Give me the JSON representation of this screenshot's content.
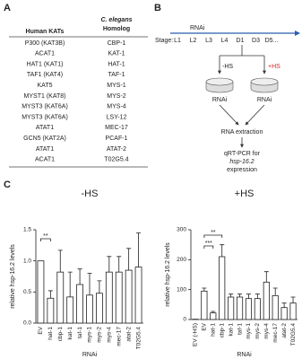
{
  "labels": {
    "a": "A",
    "b": "B",
    "c": "C"
  },
  "table": {
    "header": {
      "col1": "Human KATs",
      "col2": [
        "C. elegans",
        "Homolog"
      ]
    },
    "rows": [
      [
        "P300 (KAT3B)",
        "CBP-1"
      ],
      [
        "ACAT1",
        "KAT-1"
      ],
      [
        "HAT1 (KAT1)",
        "HAT-1"
      ],
      [
        "TAF1 (KAT4)",
        "TAF-1"
      ],
      [
        "KAT5",
        "MYS-1"
      ],
      [
        "MYST1 (KAT8)",
        "MYS-2"
      ],
      [
        "MYST3 (KAT6A)",
        "MYS-4"
      ],
      [
        "MYST3 (KAT6A)",
        "LSY-12"
      ],
      [
        "ATAT1",
        "MEC-17"
      ],
      [
        "GCN5 (KAT2A)",
        "PCAF-1"
      ],
      [
        "ATAT1",
        "ATAT-2"
      ],
      [
        "ACAT1",
        "T02G5.4"
      ]
    ]
  },
  "diagram": {
    "arrow_label": "RNAi",
    "stage_label": "Stage:",
    "stages": [
      "L1",
      "L2",
      "L3",
      "L4",
      "D1",
      "D3",
      "D5..."
    ],
    "groups": [
      {
        "label": "-HS",
        "dish": "RNAi"
      },
      {
        "label": "+HS",
        "dish": "RNAi"
      }
    ],
    "step1": "RNA extraction",
    "step2": [
      "qRT-PCR for",
      "hsp-16.2",
      "expression"
    ]
  },
  "chart_data": [
    {
      "type": "bar",
      "title": "-HS",
      "x_label": "RNAi",
      "y_label": "relative hsp-16.2 levels",
      "categories": [
        "EV",
        "hat-1",
        "cbp-1",
        "kat-1",
        "taf-1",
        "mys-1",
        "mys-2",
        "mys-4",
        "mec-17",
        "atat-2",
        "T02G5.4"
      ],
      "values": [
        1.0,
        0.4,
        0.82,
        0.42,
        0.62,
        0.45,
        0.48,
        0.82,
        0.82,
        0.85,
        0.9
      ],
      "errors": [
        0,
        0.12,
        0.35,
        0.4,
        0.25,
        0.35,
        0.2,
        0.25,
        0.25,
        0.35,
        0.55
      ],
      "color": "#ffffff",
      "ylim": [
        0,
        1.5
      ],
      "yticks": [
        {
          "value": 0,
          "label": "0.0"
        },
        {
          "value": 0.5,
          "label": "0.5"
        },
        {
          "value": 1,
          "label": "1.0"
        },
        {
          "value": 1.5,
          "label": "1.5"
        }
      ],
      "annotations": [
        "**"
      ]
    },
    {
      "type": "bar",
      "title": "+HS",
      "x_label": "RNAi",
      "y_label": "relative hsp-16.2 levels",
      "categories": [
        "EV (-HS)",
        "EV",
        "hat-1",
        "cbp-1",
        "kat-1",
        "taf-1",
        "mys-1",
        "mys-2",
        "mys-4",
        "mec-17",
        "atat-2",
        "T02G5.4"
      ],
      "values": [
        1,
        95,
        22,
        210,
        75,
        75,
        70,
        70,
        125,
        80,
        40,
        55
      ],
      "errors": [
        0,
        10,
        5,
        40,
        10,
        10,
        15,
        15,
        35,
        25,
        15,
        20
      ],
      "color": "#ffffff",
      "ylim": [
        0,
        300
      ],
      "yticks": [
        0,
        100,
        200,
        300
      ],
      "annotations": [
        "***",
        "**"
      ]
    }
  ]
}
